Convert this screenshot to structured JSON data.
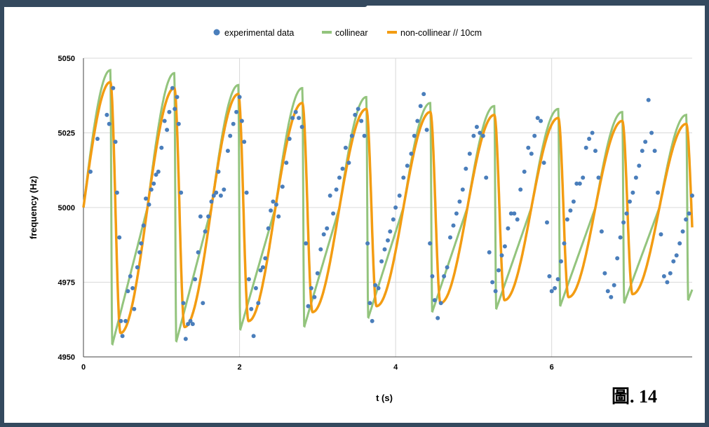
{
  "figure_label": "圖. 14",
  "colors": {
    "experimental": "#4a7ebb",
    "collinear": "#93c47d",
    "noncollinear": "#f39c12",
    "grid": "#d9d9d9",
    "frame": "#34495e"
  },
  "chart_data": {
    "type": "scatter",
    "title": "",
    "xlabel": "t (s)",
    "ylabel": "frequency (Hz)",
    "xlim": [
      0,
      7.8
    ],
    "ylim": [
      4950,
      5050
    ],
    "xticks": [
      0,
      2,
      4,
      6
    ],
    "yticks": [
      4950,
      4975,
      5000,
      5025,
      5050
    ],
    "grid": true,
    "legend_position": "top",
    "legend": [
      "experimental data",
      "collinear",
      "non-collinear // 10cm"
    ],
    "series": [
      {
        "name": "experimental data",
        "kind": "points",
        "points": [
          [
            0.09,
            5012
          ],
          [
            0.18,
            5023
          ],
          [
            0.3,
            5031
          ],
          [
            0.33,
            5028
          ],
          [
            0.38,
            5040
          ],
          [
            0.41,
            5022
          ],
          [
            0.43,
            5005
          ],
          [
            0.46,
            4990
          ],
          [
            0.48,
            4962
          ],
          [
            0.5,
            4957
          ],
          [
            0.54,
            4962
          ],
          [
            0.57,
            4972
          ],
          [
            0.6,
            4977
          ],
          [
            0.63,
            4973
          ],
          [
            0.65,
            4966
          ],
          [
            0.69,
            4980
          ],
          [
            0.72,
            4985
          ],
          [
            0.74,
            4988
          ],
          [
            0.77,
            4994
          ],
          [
            0.8,
            5003
          ],
          [
            0.84,
            5001
          ],
          [
            0.87,
            5006
          ],
          [
            0.9,
            5008
          ],
          [
            0.93,
            5011
          ],
          [
            0.96,
            5012
          ],
          [
            1.0,
            5020
          ],
          [
            1.04,
            5029
          ],
          [
            1.07,
            5026
          ],
          [
            1.1,
            5032
          ],
          [
            1.14,
            5040
          ],
          [
            1.17,
            5033
          ],
          [
            1.2,
            5037
          ],
          [
            1.22,
            5028
          ],
          [
            1.25,
            5005
          ],
          [
            1.28,
            4968
          ],
          [
            1.31,
            4956
          ],
          [
            1.34,
            4961
          ],
          [
            1.37,
            4962
          ],
          [
            1.4,
            4961
          ],
          [
            1.43,
            4976
          ],
          [
            1.47,
            4985
          ],
          [
            1.5,
            4997
          ],
          [
            1.53,
            4968
          ],
          [
            1.56,
            4992
          ],
          [
            1.6,
            4997
          ],
          [
            1.64,
            5002
          ],
          [
            1.67,
            5004
          ],
          [
            1.7,
            5005
          ],
          [
            1.73,
            5012
          ],
          [
            1.76,
            5004
          ],
          [
            1.8,
            5006
          ],
          [
            1.85,
            5019
          ],
          [
            1.88,
            5024
          ],
          [
            1.92,
            5028
          ],
          [
            1.96,
            5032
          ],
          [
            2.0,
            5037
          ],
          [
            2.03,
            5029
          ],
          [
            2.06,
            5022
          ],
          [
            2.09,
            5005
          ],
          [
            2.12,
            4976
          ],
          [
            2.15,
            4966
          ],
          [
            2.18,
            4957
          ],
          [
            2.21,
            4973
          ],
          [
            2.24,
            4968
          ],
          [
            2.27,
            4979
          ],
          [
            2.3,
            4980
          ],
          [
            2.33,
            4983
          ],
          [
            2.37,
            4993
          ],
          [
            2.4,
            4999
          ],
          [
            2.43,
            5002
          ],
          [
            2.47,
            5001
          ],
          [
            2.5,
            4997
          ],
          [
            2.55,
            5007
          ],
          [
            2.6,
            5015
          ],
          [
            2.64,
            5023
          ],
          [
            2.68,
            5030
          ],
          [
            2.72,
            5032
          ],
          [
            2.76,
            5030
          ],
          [
            2.8,
            5027
          ],
          [
            2.85,
            4988
          ],
          [
            2.88,
            4967
          ],
          [
            2.92,
            4973
          ],
          [
            2.96,
            4970
          ],
          [
            3.0,
            4978
          ],
          [
            3.04,
            4986
          ],
          [
            3.08,
            4991
          ],
          [
            3.12,
            4993
          ],
          [
            3.16,
            5004
          ],
          [
            3.2,
            4998
          ],
          [
            3.24,
            5006
          ],
          [
            3.28,
            5010
          ],
          [
            3.32,
            5013
          ],
          [
            3.36,
            5020
          ],
          [
            3.4,
            5015
          ],
          [
            3.44,
            5024
          ],
          [
            3.48,
            5031
          ],
          [
            3.52,
            5033
          ],
          [
            3.56,
            5029
          ],
          [
            3.6,
            5024
          ],
          [
            3.64,
            4988
          ],
          [
            3.67,
            4968
          ],
          [
            3.7,
            4962
          ],
          [
            3.74,
            4974
          ],
          [
            3.78,
            4973
          ],
          [
            3.82,
            4982
          ],
          [
            3.86,
            4986
          ],
          [
            3.9,
            4989
          ],
          [
            3.93,
            4992
          ],
          [
            3.97,
            4996
          ],
          [
            4.0,
            5000
          ],
          [
            4.05,
            5004
          ],
          [
            4.1,
            5010
          ],
          [
            4.15,
            5014
          ],
          [
            4.2,
            5018
          ],
          [
            4.24,
            5024
          ],
          [
            4.28,
            5029
          ],
          [
            4.32,
            5034
          ],
          [
            4.36,
            5038
          ],
          [
            4.4,
            5026
          ],
          [
            4.44,
            4988
          ],
          [
            4.47,
            4977
          ],
          [
            4.5,
            4969
          ],
          [
            4.54,
            4963
          ],
          [
            4.58,
            4968
          ],
          [
            4.62,
            4977
          ],
          [
            4.66,
            4980
          ],
          [
            4.7,
            4990
          ],
          [
            4.74,
            4994
          ],
          [
            4.78,
            4998
          ],
          [
            4.82,
            5002
          ],
          [
            4.86,
            5006
          ],
          [
            4.9,
            5013
          ],
          [
            4.95,
            5018
          ],
          [
            5.0,
            5024
          ],
          [
            5.04,
            5027
          ],
          [
            5.08,
            5025
          ],
          [
            5.12,
            5024
          ],
          [
            5.16,
            5010
          ],
          [
            5.2,
            4985
          ],
          [
            5.24,
            4975
          ],
          [
            5.28,
            4972
          ],
          [
            5.32,
            4979
          ],
          [
            5.36,
            4984
          ],
          [
            5.4,
            4987
          ],
          [
            5.44,
            4993
          ],
          [
            5.48,
            4998
          ],
          [
            5.52,
            4998
          ],
          [
            5.56,
            4996
          ],
          [
            5.6,
            5006
          ],
          [
            5.65,
            5012
          ],
          [
            5.7,
            5020
          ],
          [
            5.74,
            5018
          ],
          [
            5.78,
            5024
          ],
          [
            5.82,
            5030
          ],
          [
            5.86,
            5029
          ],
          [
            5.9,
            5015
          ],
          [
            5.94,
            4995
          ],
          [
            5.97,
            4977
          ],
          [
            6.0,
            4972
          ],
          [
            6.04,
            4973
          ],
          [
            6.08,
            4976
          ],
          [
            6.12,
            4982
          ],
          [
            6.16,
            4988
          ],
          [
            6.2,
            4996
          ],
          [
            6.24,
            4999
          ],
          [
            6.28,
            5002
          ],
          [
            6.32,
            5008
          ],
          [
            6.36,
            5008
          ],
          [
            6.4,
            5010
          ],
          [
            6.44,
            5020
          ],
          [
            6.48,
            5023
          ],
          [
            6.52,
            5025
          ],
          [
            6.56,
            5019
          ],
          [
            6.6,
            5010
          ],
          [
            6.64,
            4992
          ],
          [
            6.68,
            4978
          ],
          [
            6.72,
            4972
          ],
          [
            6.76,
            4970
          ],
          [
            6.8,
            4974
          ],
          [
            6.84,
            4983
          ],
          [
            6.88,
            4990
          ],
          [
            6.92,
            4995
          ],
          [
            6.96,
            4998
          ],
          [
            7.0,
            5002
          ],
          [
            7.04,
            5005
          ],
          [
            7.08,
            5010
          ],
          [
            7.12,
            5014
          ],
          [
            7.16,
            5019
          ],
          [
            7.2,
            5022
          ],
          [
            7.24,
            5036
          ],
          [
            7.28,
            5025
          ],
          [
            7.32,
            5019
          ],
          [
            7.36,
            5005
          ],
          [
            7.4,
            4991
          ],
          [
            7.44,
            4977
          ],
          [
            7.48,
            4975
          ],
          [
            7.52,
            4978
          ],
          [
            7.56,
            4982
          ],
          [
            7.6,
            4984
          ],
          [
            7.64,
            4988
          ],
          [
            7.68,
            4992
          ],
          [
            7.72,
            4996
          ],
          [
            7.76,
            4998
          ],
          [
            7.8,
            5004
          ]
        ]
      },
      {
        "name": "collinear",
        "kind": "curve",
        "period": 0.82,
        "amplitudes": [
          46,
          45,
          41,
          40,
          37,
          35,
          34,
          33,
          32,
          31
        ],
        "x": [
          0,
          7.8
        ]
      },
      {
        "name": "non-collinear // 10cm",
        "kind": "curve",
        "period": 0.82,
        "amplitudes": [
          42,
          40,
          38,
          35,
          33,
          32,
          31,
          30,
          29,
          28
        ],
        "x": [
          0,
          7.8
        ]
      }
    ]
  }
}
